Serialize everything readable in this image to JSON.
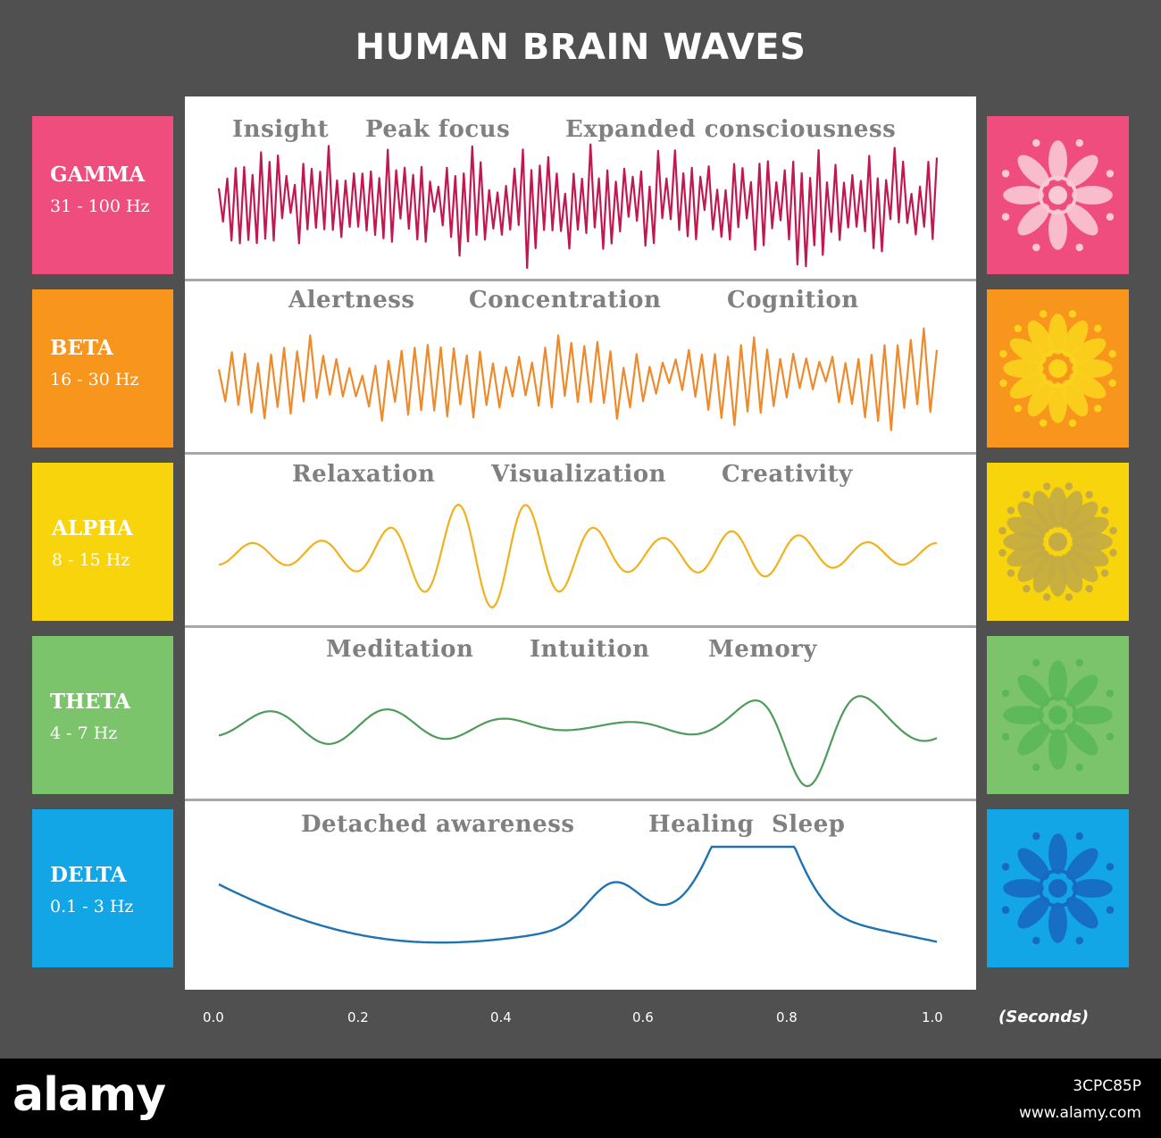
{
  "title": "HUMAN BRAIN WAVES",
  "bands": [
    {
      "name": "GAMMA",
      "freq": "31 - 100 Hz",
      "color": "#ef4d7d",
      "wave_color": "#c2174f",
      "icon_color": "#f9c9d6",
      "states": [
        "Insight",
        "Peak focus",
        "Expanded consciousness"
      ]
    },
    {
      "name": "BETA",
      "freq": "16 - 30 Hz",
      "color": "#f7951d",
      "wave_color": "#ee8a2a",
      "icon_color": "#fbd21c",
      "states": [
        "Alertness",
        "Concentration",
        "Cognition"
      ]
    },
    {
      "name": "ALPHA",
      "freq": "8 - 15 Hz",
      "color": "#f8d40c",
      "wave_color": "#efb21d",
      "icon_color": "#c4ab44",
      "states": [
        "Relaxation",
        "Visualization",
        "Creativity"
      ]
    },
    {
      "name": "THETA",
      "freq": "4 - 7 Hz",
      "color": "#7cc46c",
      "wave_color": "#4f9b5a",
      "icon_color": "#5ab857",
      "states": [
        "Meditation",
        "Intuition",
        "Memory"
      ]
    },
    {
      "name": "DELTA",
      "freq": "0.1 - 3 Hz",
      "color": "#12a6e6",
      "wave_color": "#1f73b0",
      "icon_color": "#1769c2",
      "states": [
        "Detached awareness",
        "Healing",
        "Sleep"
      ]
    }
  ],
  "x_axis": {
    "ticks": [
      "0.0",
      "0.2",
      "0.4",
      "0.6",
      "0.8",
      "1.0"
    ],
    "unit": "(Seconds)"
  },
  "icons": [
    "gamma-mandala-icon",
    "beta-mandala-icon",
    "alpha-mandala-icon",
    "theta-mandala-icon",
    "delta-mandala-icon"
  ],
  "footer": {
    "brand": "alamy",
    "image_id": "3CPC85P",
    "url": "www.alamy.com"
  }
}
